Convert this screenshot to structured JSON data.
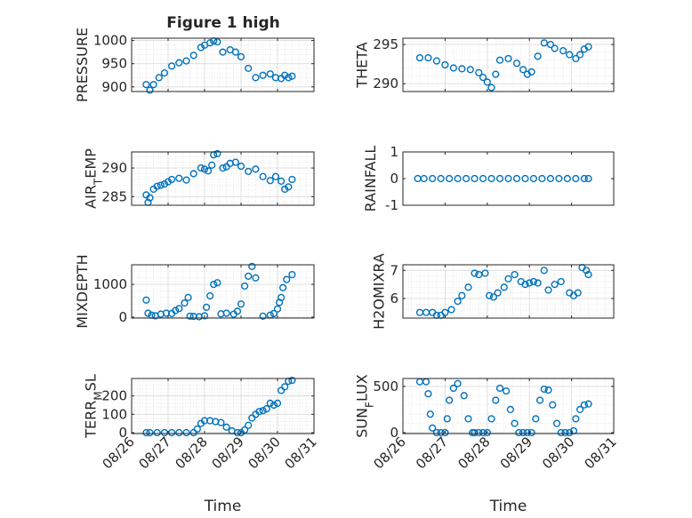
{
  "figure_title": "Figure 1 high",
  "marker_color": "#0072BD",
  "chart_data": [
    {
      "type": "scatter",
      "ylabel": "PRESSURE",
      "title": "Figure 1 high",
      "ylim": [
        890,
        1005
      ],
      "yticks": [
        900,
        950,
        1000
      ],
      "x": [
        26.4,
        26.5,
        26.6,
        26.75,
        26.9,
        27.1,
        27.3,
        27.5,
        27.7,
        27.9,
        28.0,
        28.15,
        28.25,
        28.35,
        28.5,
        28.7,
        28.85,
        29.0,
        29.2,
        29.4,
        29.6,
        29.8,
        29.95,
        30.1,
        30.2,
        30.3,
        30.4
      ],
      "y": [
        905,
        893,
        905,
        920,
        930,
        945,
        952,
        956,
        968,
        985,
        990,
        995,
        999,
        997,
        975,
        980,
        975,
        965,
        940,
        920,
        925,
        928,
        920,
        918,
        925,
        920,
        923
      ],
      "grid": true,
      "minor_grid": true
    },
    {
      "type": "scatter",
      "ylabel": "THETA",
      "ylim": [
        289,
        295.8
      ],
      "yticks": [
        290,
        295
      ],
      "x": [
        26.4,
        26.6,
        26.8,
        27.0,
        27.2,
        27.4,
        27.6,
        27.8,
        27.9,
        28.0,
        28.1,
        28.2,
        28.3,
        28.5,
        28.7,
        28.85,
        28.95,
        29.05,
        29.2,
        29.35,
        29.5,
        29.6,
        29.8,
        29.95,
        30.1,
        30.2,
        30.3,
        30.4
      ],
      "y": [
        293.3,
        293.3,
        292.9,
        292.4,
        292.0,
        291.9,
        291.8,
        291.4,
        290.8,
        290.2,
        289.5,
        291.2,
        293.0,
        293.2,
        292.6,
        291.8,
        291.2,
        291.5,
        293.5,
        295.2,
        295.0,
        294.5,
        294.2,
        293.7,
        293.2,
        293.7,
        294.4,
        294.7
      ],
      "grid": true,
      "minor_grid": true
    },
    {
      "type": "scatter",
      "ylabel": "AIR_TEMP",
      "ylim": [
        283.5,
        292.8
      ],
      "yticks": [
        285,
        290
      ],
      "x": [
        26.4,
        26.45,
        26.5,
        26.6,
        26.7,
        26.8,
        26.9,
        27.0,
        27.1,
        27.3,
        27.5,
        27.7,
        27.9,
        28.0,
        28.1,
        28.2,
        28.25,
        28.35,
        28.5,
        28.6,
        28.7,
        28.85,
        29.0,
        29.2,
        29.4,
        29.6,
        29.8,
        29.95,
        30.1,
        30.2,
        30.3,
        30.4
      ],
      "y": [
        285.3,
        284.0,
        284.8,
        286.3,
        286.8,
        287.0,
        287.2,
        287.6,
        288.0,
        288.2,
        287.9,
        289.0,
        290.0,
        289.8,
        289.5,
        290.5,
        292.3,
        292.5,
        290.0,
        290.2,
        290.8,
        291.0,
        290.3,
        289.4,
        289.8,
        288.5,
        287.8,
        288.5,
        287.7,
        286.3,
        286.7,
        288.0
      ],
      "grid": true,
      "minor_grid": true
    },
    {
      "type": "scatter",
      "ylabel": "RAINFALL",
      "ylim": [
        -1,
        1
      ],
      "yticks": [
        -1,
        0,
        1
      ],
      "x": [
        26.35,
        26.5,
        26.7,
        26.9,
        27.1,
        27.3,
        27.5,
        27.7,
        27.9,
        28.1,
        28.3,
        28.5,
        28.7,
        28.9,
        29.1,
        29.3,
        29.5,
        29.7,
        29.9,
        30.1,
        30.3,
        30.4
      ],
      "y": [
        0,
        0,
        0,
        0,
        0,
        0,
        0,
        0,
        0,
        0,
        0,
        0,
        0,
        0,
        0,
        0,
        0,
        0,
        0,
        0,
        0,
        0
      ],
      "grid": false,
      "minor_grid": false
    },
    {
      "type": "scatter",
      "ylabel": "MIXDEPTH",
      "ylim": [
        -30,
        1600
      ],
      "yticks": [
        0,
        1000
      ],
      "x": [
        26.4,
        26.45,
        26.55,
        26.65,
        26.8,
        26.95,
        27.1,
        27.2,
        27.3,
        27.45,
        27.55,
        27.6,
        27.7,
        27.85,
        28.0,
        28.05,
        28.15,
        28.25,
        28.35,
        28.45,
        28.6,
        28.8,
        28.9,
        29.0,
        29.1,
        29.2,
        29.3,
        29.4,
        29.6,
        29.8,
        29.9,
        30.0,
        30.05,
        30.1,
        30.15,
        30.25,
        30.4
      ],
      "y": [
        520,
        120,
        60,
        40,
        90,
        120,
        110,
        200,
        260,
        430,
        600,
        30,
        20,
        10,
        40,
        300,
        650,
        1000,
        1050,
        100,
        120,
        90,
        180,
        400,
        950,
        1250,
        1550,
        1200,
        30,
        60,
        110,
        250,
        450,
        600,
        900,
        1150,
        1300
      ],
      "grid": true,
      "minor_grid": true
    },
    {
      "type": "scatter",
      "ylabel": "H2OMIXRA",
      "ylim": [
        5.3,
        7.2
      ],
      "yticks": [
        6,
        7
      ],
      "x": [
        26.4,
        26.55,
        26.7,
        26.8,
        26.9,
        27.0,
        27.15,
        27.3,
        27.4,
        27.55,
        27.7,
        27.8,
        27.95,
        28.05,
        28.15,
        28.25,
        28.4,
        28.5,
        28.65,
        28.8,
        28.9,
        29.0,
        29.1,
        29.2,
        29.35,
        29.45,
        29.6,
        29.75,
        29.95,
        30.05,
        30.15,
        30.25,
        30.35,
        30.4
      ],
      "y": [
        5.5,
        5.5,
        5.5,
        5.4,
        5.4,
        5.5,
        5.6,
        5.9,
        6.1,
        6.4,
        6.9,
        6.85,
        6.9,
        6.1,
        6.05,
        6.2,
        6.4,
        6.7,
        6.85,
        6.6,
        6.5,
        6.55,
        6.6,
        6.55,
        7.0,
        6.3,
        6.5,
        6.6,
        6.2,
        6.1,
        6.2,
        7.1,
        7.0,
        6.85
      ],
      "grid": true,
      "minor_grid": true
    },
    {
      "type": "scatter",
      "ylabel": "TERR_MSL",
      "ylim": [
        -5,
        295
      ],
      "yticks": [
        0,
        100,
        200
      ],
      "x": [
        26.4,
        26.5,
        26.7,
        26.9,
        27.1,
        27.3,
        27.5,
        27.7,
        27.8,
        27.9,
        28.0,
        28.15,
        28.3,
        28.45,
        28.6,
        28.75,
        28.9,
        29.0,
        29.1,
        29.2,
        29.3,
        29.4,
        29.5,
        29.6,
        29.7,
        29.8,
        29.9,
        30.0,
        30.1,
        30.2,
        30.3,
        30.4
      ],
      "y": [
        0,
        0,
        0,
        0,
        0,
        0,
        0,
        0,
        20,
        50,
        65,
        65,
        60,
        55,
        30,
        10,
        0,
        0,
        15,
        40,
        80,
        100,
        115,
        120,
        130,
        160,
        150,
        160,
        230,
        250,
        280,
        285
      ],
      "grid": true,
      "minor_grid": true
    },
    {
      "type": "scatter",
      "ylabel": "SUN_FLUX",
      "ylim": [
        -10,
        585
      ],
      "yticks": [
        0,
        500
      ],
      "x": [
        26.4,
        26.55,
        26.6,
        26.65,
        26.7,
        26.8,
        26.9,
        27.0,
        27.05,
        27.1,
        27.2,
        27.3,
        27.45,
        27.55,
        27.65,
        27.7,
        27.8,
        27.9,
        28.0,
        28.1,
        28.2,
        28.3,
        28.45,
        28.55,
        28.65,
        28.75,
        28.85,
        28.95,
        29.05,
        29.15,
        29.25,
        29.35,
        29.45,
        29.55,
        29.65,
        29.75,
        29.85,
        29.95,
        30.05,
        30.1,
        30.2,
        30.3,
        30.4
      ],
      "y": [
        550,
        550,
        420,
        200,
        50,
        0,
        0,
        0,
        150,
        350,
        480,
        530,
        400,
        150,
        0,
        0,
        0,
        0,
        0,
        150,
        350,
        480,
        450,
        250,
        100,
        0,
        0,
        0,
        0,
        150,
        350,
        470,
        460,
        300,
        100,
        0,
        0,
        0,
        20,
        150,
        250,
        300,
        310
      ],
      "grid": true,
      "minor_grid": true
    }
  ],
  "axes": {
    "xlabel": "Time",
    "xlim": [
      26,
      31
    ],
    "xticks": [
      26,
      27,
      28,
      29,
      30,
      31
    ],
    "xtick_labels": [
      "08/26",
      "08/27",
      "08/28",
      "08/29",
      "08/30",
      "08/31"
    ]
  }
}
